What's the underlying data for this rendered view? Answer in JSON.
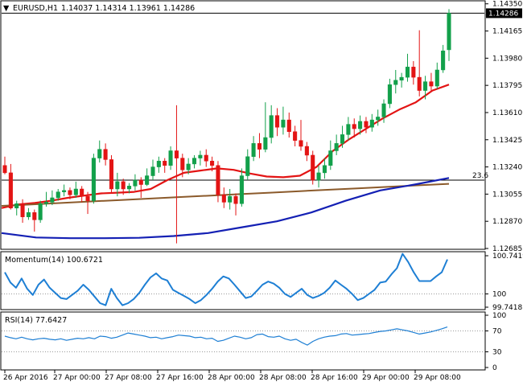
{
  "chart_data": [
    {
      "type": "candlestick",
      "symbol": "EURUSD",
      "timeframe": "H1",
      "ohlc_header": "1.14037 1.14314 1.13961 1.14286",
      "current_price_label": "1.14286",
      "y_ticks": [
        "1.14350",
        "1.14165",
        "1.13980",
        "1.13795",
        "1.13610",
        "1.13425",
        "1.13240",
        "1.13055",
        "1.12870",
        "1.12685"
      ],
      "ylim": [
        1.12685,
        1.14365
      ],
      "x_ticks": [
        "26 Apr 2016",
        "27 Apr 00:00",
        "27 Apr 08:00",
        "27 Apr 16:00",
        "28 Apr 00:00",
        "28 Apr 08:00",
        "28 Apr 16:00",
        "29 Apr 00:00",
        "29 Apr 08:00"
      ],
      "level_label": "23.6",
      "level_value": 1.1315,
      "series": [
        {
          "name": "",
          "color": "#e31414",
          "values": [
            1.1296,
            1.12985,
            1.12995,
            1.1301,
            1.1303,
            1.13045,
            1.1306,
            1.13065,
            1.1307,
            1.1309,
            1.1315,
            1.132,
            1.13215,
            1.1323,
            1.1322,
            1.13195,
            1.13175,
            1.1317,
            1.1318,
            1.1324,
            1.1335,
            1.1343,
            1.135,
            1.1357,
            1.1363,
            1.1368,
            1.1376,
            1.138
          ]
        },
        {
          "name": "",
          "color": "#8b5a2b",
          "values": [
            1.12975,
            1.12985,
            1.12995,
            1.13005,
            1.13015,
            1.13025,
            1.13035,
            1.13045,
            1.13055,
            1.13065,
            1.13075,
            1.13085,
            1.13095,
            1.13105,
            1.13115,
            1.13125
          ]
        },
        {
          "name": "",
          "color": "#1420b4",
          "values": [
            1.1279,
            1.1276,
            1.12755,
            1.12755,
            1.12758,
            1.1277,
            1.1279,
            1.1283,
            1.1287,
            1.1293,
            1.1301,
            1.1308,
            1.1312,
            1.13165
          ]
        }
      ],
      "candles": [
        [
          1.1325,
          1.132,
          1.1331,
          1.1319
        ],
        [
          1.132,
          1.1296,
          1.1326,
          1.1295
        ],
        [
          1.1296,
          1.1299,
          1.1301,
          1.1291
        ],
        [
          1.1299,
          1.129,
          1.1302,
          1.1286
        ],
        [
          1.129,
          1.1293,
          1.1296,
          1.1288
        ],
        [
          1.1293,
          1.1288,
          1.1295,
          1.128
        ],
        [
          1.1288,
          1.1299,
          1.1301,
          1.1286
        ],
        [
          1.1299,
          1.13,
          1.1307,
          1.1297
        ],
        [
          1.13,
          1.1303,
          1.1308,
          1.1298
        ],
        [
          1.1303,
          1.1307,
          1.1309,
          1.1301
        ],
        [
          1.1307,
          1.1308,
          1.1312,
          1.1304
        ],
        [
          1.1308,
          1.1305,
          1.131,
          1.1302
        ],
        [
          1.1305,
          1.1309,
          1.1314,
          1.1303
        ],
        [
          1.1309,
          1.1304,
          1.1311,
          1.13
        ],
        [
          1.1304,
          1.1301,
          1.1307,
          1.1292
        ],
        [
          1.1301,
          1.133,
          1.1333,
          1.1299
        ],
        [
          1.133,
          1.1336,
          1.1342,
          1.1327
        ],
        [
          1.1336,
          1.1329,
          1.134,
          1.1325
        ],
        [
          1.1329,
          1.1309,
          1.1332,
          1.1306
        ],
        [
          1.1309,
          1.1314,
          1.132,
          1.1304
        ],
        [
          1.1314,
          1.1309,
          1.1316,
          1.1305
        ],
        [
          1.1309,
          1.1311,
          1.1313,
          1.1306
        ],
        [
          1.1311,
          1.1315,
          1.1319,
          1.1308
        ],
        [
          1.1315,
          1.1312,
          1.1317,
          1.1303
        ],
        [
          1.1312,
          1.1318,
          1.1323,
          1.1311
        ],
        [
          1.1318,
          1.1324,
          1.1329,
          1.1315
        ],
        [
          1.1324,
          1.1328,
          1.1331,
          1.132
        ],
        [
          1.1328,
          1.1325,
          1.133,
          1.132
        ],
        [
          1.1325,
          1.1335,
          1.1338,
          1.1322
        ],
        [
          1.1335,
          1.133,
          1.1366,
          1.1272
        ],
        [
          1.133,
          1.1322,
          1.1333,
          1.1317
        ],
        [
          1.1322,
          1.1326,
          1.133,
          1.1319
        ],
        [
          1.1326,
          1.133,
          1.1332,
          1.1323
        ],
        [
          1.133,
          1.1332,
          1.1335,
          1.1325
        ],
        [
          1.1332,
          1.1328,
          1.1336,
          1.1324
        ],
        [
          1.1328,
          1.1325,
          1.1331,
          1.1321
        ],
        [
          1.1325,
          1.1305,
          1.1328,
          1.13
        ],
        [
          1.1305,
          1.13,
          1.131,
          1.1296
        ],
        [
          1.13,
          1.1304,
          1.1309,
          1.1295
        ],
        [
          1.1304,
          1.1299,
          1.1306,
          1.1291
        ],
        [
          1.1299,
          1.1318,
          1.1323,
          1.1297
        ],
        [
          1.1318,
          1.1331,
          1.1336,
          1.1315
        ],
        [
          1.1331,
          1.134,
          1.1345,
          1.1328
        ],
        [
          1.134,
          1.1336,
          1.1347,
          1.133
        ],
        [
          1.1336,
          1.1344,
          1.1368,
          1.1334
        ],
        [
          1.1344,
          1.1359,
          1.1366,
          1.134
        ],
        [
          1.1359,
          1.1351,
          1.1364,
          1.1345
        ],
        [
          1.1351,
          1.1356,
          1.1365,
          1.1346
        ],
        [
          1.1356,
          1.1348,
          1.1361,
          1.1344
        ],
        [
          1.1348,
          1.1342,
          1.1352,
          1.1338
        ],
        [
          1.1342,
          1.1338,
          1.1356,
          1.1335
        ],
        [
          1.1338,
          1.1332,
          1.1341,
          1.1328
        ],
        [
          1.1332,
          1.1315,
          1.1335,
          1.1312
        ],
        [
          1.1315,
          1.132,
          1.1325,
          1.131
        ],
        [
          1.132,
          1.1325,
          1.133,
          1.1316
        ],
        [
          1.1325,
          1.1335,
          1.1342,
          1.1322
        ],
        [
          1.1335,
          1.134,
          1.1346,
          1.1332
        ],
        [
          1.134,
          1.1346,
          1.1352,
          1.1337
        ],
        [
          1.1346,
          1.1353,
          1.1358,
          1.1342
        ],
        [
          1.1353,
          1.135,
          1.1357,
          1.1344
        ],
        [
          1.135,
          1.1355,
          1.1359,
          1.1346
        ],
        [
          1.1355,
          1.1351,
          1.1358,
          1.1347
        ],
        [
          1.1351,
          1.1356,
          1.136,
          1.1348
        ],
        [
          1.1356,
          1.1358,
          1.1363,
          1.1352
        ],
        [
          1.1358,
          1.1367,
          1.137,
          1.1354
        ],
        [
          1.1367,
          1.138,
          1.1384,
          1.1364
        ],
        [
          1.138,
          1.1383,
          1.139,
          1.1374
        ],
        [
          1.1383,
          1.1385,
          1.1388,
          1.1378
        ],
        [
          1.1385,
          1.1392,
          1.1401,
          1.1382
        ],
        [
          1.1392,
          1.1385,
          1.1396,
          1.138
        ],
        [
          1.1385,
          1.1376,
          1.1417,
          1.1372
        ],
        [
          1.1376,
          1.1382,
          1.1386,
          1.137
        ],
        [
          1.1382,
          1.1379,
          1.1388,
          1.1375
        ],
        [
          1.1379,
          1.139,
          1.1395,
          1.1377
        ],
        [
          1.139,
          1.1403,
          1.1407,
          1.1388
        ],
        [
          1.14037,
          1.14286,
          1.14314,
          1.13961
        ]
      ]
    },
    {
      "type": "line",
      "title": "Momentum(14) 100.6721",
      "color": "#1e7fd4",
      "y_ticks_right": [
        "100.7419",
        "100",
        "99.7418"
      ],
      "ylim": [
        99.7418,
        100.7419
      ],
      "values": [
        100.42,
        100.22,
        100.12,
        100.3,
        100.1,
        99.98,
        100.18,
        100.28,
        100.12,
        100.02,
        99.92,
        99.9,
        99.98,
        100.06,
        100.18,
        100.08,
        99.95,
        99.82,
        99.78,
        100.1,
        99.92,
        99.78,
        99.82,
        99.9,
        100.02,
        100.18,
        100.32,
        100.4,
        100.3,
        100.26,
        100.08,
        100.02,
        99.96,
        99.9,
        99.82,
        99.88,
        99.98,
        100.1,
        100.24,
        100.34,
        100.3,
        100.18,
        100.05,
        99.92,
        99.95,
        100.06,
        100.18,
        100.24,
        100.2,
        100.12,
        100.0,
        99.94,
        100.02,
        100.1,
        99.98,
        99.92,
        99.96,
        100.02,
        100.12,
        100.26,
        100.18,
        100.1,
        100.0,
        99.88,
        99.92,
        100.0,
        100.08,
        100.22,
        100.24,
        100.38,
        100.5,
        100.78,
        100.62,
        100.42,
        100.25,
        100.25,
        100.25,
        100.34,
        100.42,
        100.67
      ]
    },
    {
      "type": "line",
      "title": "RSI(14) 77.6427",
      "color": "#1e7fd4",
      "y_ticks_right": [
        "100",
        "70",
        "30",
        "0"
      ],
      "ylim": [
        0,
        100
      ],
      "levels": [
        70,
        30
      ],
      "values": [
        60,
        57,
        55,
        58,
        55,
        53,
        55,
        56,
        54,
        53,
        55,
        52,
        54,
        56,
        55,
        57,
        55,
        60,
        59,
        56,
        58,
        62,
        66,
        64,
        62,
        60,
        57,
        58,
        55,
        57,
        59,
        62,
        61,
        60,
        57,
        58,
        55,
        56,
        50,
        52,
        56,
        60,
        58,
        55,
        57,
        63,
        64,
        59,
        58,
        60,
        55,
        52,
        54,
        48,
        43,
        50,
        55,
        58,
        60,
        61,
        64,
        65,
        62,
        63,
        64,
        65,
        67,
        69,
        70,
        72,
        74,
        72,
        70,
        67,
        64,
        66,
        68,
        71,
        74,
        77.6
      ]
    }
  ]
}
